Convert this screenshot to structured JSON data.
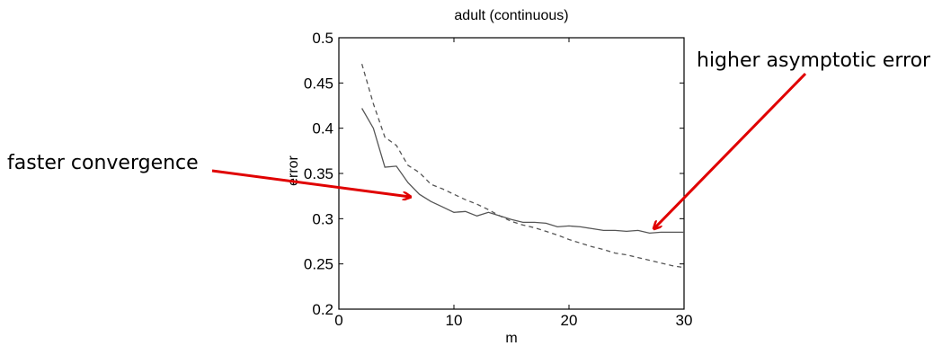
{
  "chart_data": {
    "type": "line",
    "title": "adult (continuous)",
    "xlabel": "m",
    "ylabel": "error",
    "xlim": [
      0,
      30
    ],
    "ylim": [
      0.2,
      0.5
    ],
    "xticks": [
      0,
      10,
      20,
      30
    ],
    "yticks": [
      0.2,
      0.25,
      0.3,
      0.35,
      0.4,
      0.45,
      0.5
    ],
    "xtick_labels": [
      "0",
      "10",
      "20",
      "30"
    ],
    "ytick_labels": [
      "0.2",
      "0.25",
      "0.3",
      "0.35",
      "0.4",
      "0.45",
      "0.5"
    ],
    "grid": false,
    "series": [
      {
        "style": "solid",
        "color": "#555555",
        "x": [
          2,
          3,
          4,
          5,
          6,
          7,
          8,
          9,
          10,
          11,
          12,
          13,
          14,
          15,
          16,
          17,
          18,
          19,
          20,
          21,
          22,
          23,
          24,
          25,
          26,
          27,
          28,
          29,
          30
        ],
        "y": [
          0.422,
          0.4,
          0.357,
          0.358,
          0.34,
          0.327,
          0.319,
          0.313,
          0.307,
          0.308,
          0.303,
          0.307,
          0.303,
          0.299,
          0.296,
          0.296,
          0.295,
          0.291,
          0.292,
          0.291,
          0.289,
          0.287,
          0.287,
          0.286,
          0.287,
          0.284,
          0.285,
          0.285,
          0.285
        ]
      },
      {
        "style": "dashed",
        "color": "#555555",
        "x": [
          2,
          3,
          4,
          5,
          6,
          7,
          8,
          9,
          10,
          11,
          12,
          13,
          14,
          15,
          16,
          17,
          18,
          19,
          20,
          21,
          22,
          23,
          24,
          25,
          26,
          27,
          28,
          29,
          30
        ],
        "y": [
          0.471,
          0.427,
          0.39,
          0.381,
          0.359,
          0.351,
          0.338,
          0.333,
          0.327,
          0.321,
          0.316,
          0.31,
          0.303,
          0.297,
          0.293,
          0.29,
          0.286,
          0.282,
          0.277,
          0.273,
          0.269,
          0.266,
          0.262,
          0.26,
          0.257,
          0.254,
          0.251,
          0.248,
          0.246
        ]
      }
    ],
    "annotations": [
      {
        "text": "faster convergence",
        "arrow_to": [
          6.5,
          0.325
        ],
        "color": "#e00000"
      },
      {
        "text": "higher asymptotic error",
        "arrow_to": [
          27.5,
          0.287
        ],
        "color": "#e00000"
      }
    ]
  }
}
